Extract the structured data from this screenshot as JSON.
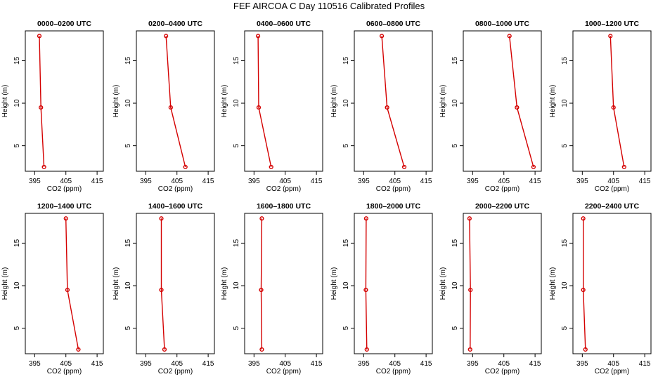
{
  "chart_data": {
    "type": "line",
    "title": "FEF AIRCOA C  Day 110516  Calibrated Profiles",
    "xlabel": "CO2 (ppm)",
    "ylabel": "Height (m)",
    "xlim": [
      392,
      417
    ],
    "ylim": [
      2,
      18.5
    ],
    "xticks": [
      "395",
      "405",
      "415"
    ],
    "yticks": [
      "5",
      "10",
      "15"
    ],
    "heights": [
      17.9,
      9.5,
      2.5
    ],
    "panels": [
      {
        "name": "0000–0200 UTC",
        "co2": [
          396.5,
          397.0,
          398.0
        ]
      },
      {
        "name": "0200–0400 UTC",
        "co2": [
          401.5,
          403.0,
          407.7
        ]
      },
      {
        "name": "0400–0600 UTC",
        "co2": [
          396.3,
          396.5,
          400.5
        ]
      },
      {
        "name": "0600–0800 UTC",
        "co2": [
          400.8,
          402.5,
          408.0
        ]
      },
      {
        "name": "0800–1000 UTC",
        "co2": [
          406.8,
          409.2,
          414.5
        ]
      },
      {
        "name": "1000–1200 UTC",
        "co2": [
          404.0,
          405.0,
          408.4
        ]
      },
      {
        "name": "1200–1400 UTC",
        "co2": [
          405.0,
          405.5,
          409.0
        ]
      },
      {
        "name": "1400–1600 UTC",
        "co2": [
          400.0,
          400.0,
          401.0
        ]
      },
      {
        "name": "1600–1800 UTC",
        "co2": [
          397.5,
          397.3,
          397.5
        ]
      },
      {
        "name": "1800–2000 UTC",
        "co2": [
          395.8,
          395.7,
          396.0
        ]
      },
      {
        "name": "2000–2200 UTC",
        "co2": [
          394.0,
          394.3,
          394.2
        ]
      },
      {
        "name": "2200–2400 UTC",
        "co2": [
          395.3,
          395.3,
          396.0
        ]
      }
    ]
  }
}
